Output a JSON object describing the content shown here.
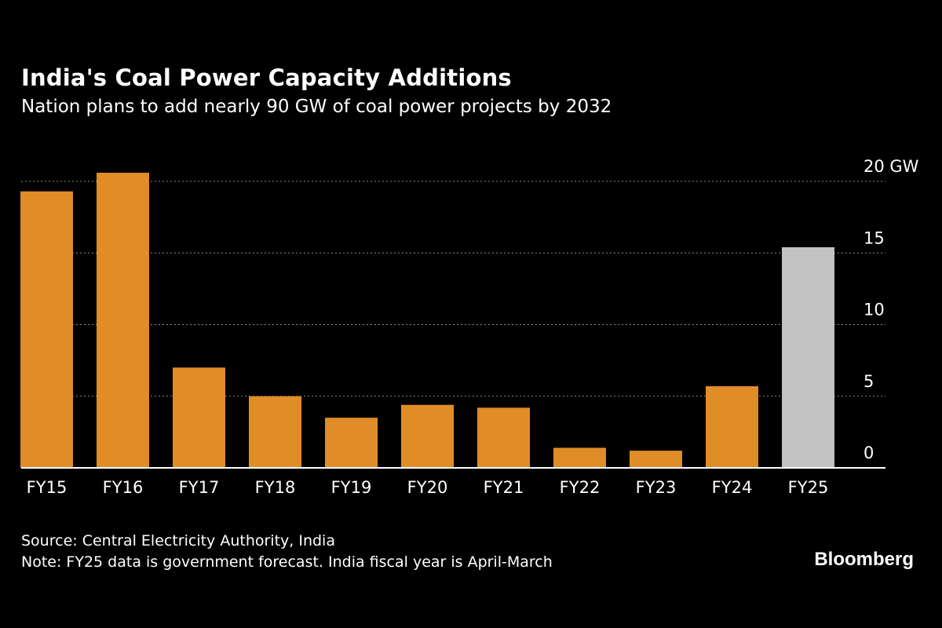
{
  "header": {
    "title": "India's Coal Power Capacity Additions",
    "subtitle": "Nation plans to add nearly 90 GW of coal power projects by 2032"
  },
  "footer": {
    "source": "Source: Central Electricity Authority, India",
    "note": "Note: FY25 data is government forecast. India fiscal year is April-March"
  },
  "brand": {
    "label": "Bloomberg"
  },
  "colors": {
    "actual": "#e08c27",
    "forecast": "#c2c2c2",
    "background": "#000000",
    "grid": "#8a8a8a",
    "text": "#ffffff"
  },
  "chart_data": {
    "type": "bar",
    "title": "India's Coal Power Capacity Additions",
    "subtitle": "Nation plans to add nearly 90 GW of coal power projects by 2032",
    "categories": [
      "FY15",
      "FY16",
      "FY17",
      "FY18",
      "FY19",
      "FY20",
      "FY21",
      "FY22",
      "FY23",
      "FY24",
      "FY25"
    ],
    "values": [
      19.3,
      20.6,
      7.0,
      5.0,
      3.5,
      4.4,
      4.2,
      1.4,
      1.2,
      5.7,
      15.4
    ],
    "forecast": [
      false,
      false,
      false,
      false,
      false,
      false,
      false,
      false,
      false,
      false,
      true
    ],
    "ylim": [
      0,
      20
    ],
    "yticks": [
      0,
      5,
      10,
      15,
      20
    ],
    "ytick_labels": [
      "0",
      "5",
      "10",
      "15",
      "20 GW"
    ],
    "y_axis_position": "right",
    "grid": true,
    "xlabel": "",
    "ylabel": ""
  }
}
